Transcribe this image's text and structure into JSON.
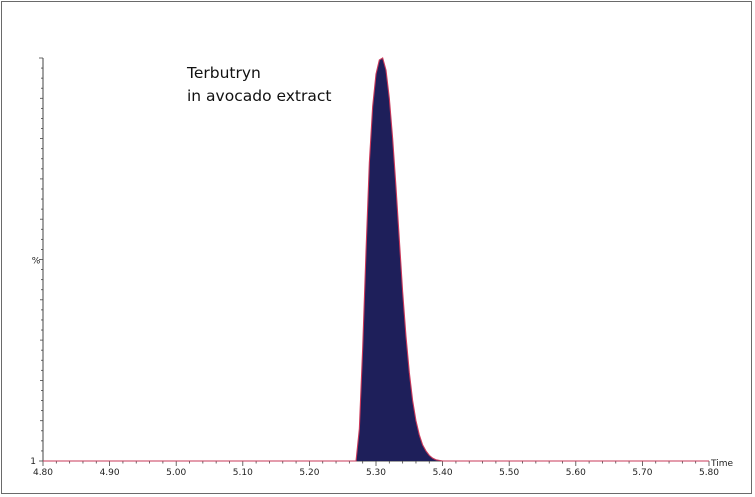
{
  "chart_data": {
    "type": "area",
    "title": "",
    "annotation": [
      "Terbutryn",
      "in avocado extract"
    ],
    "xlabel": "Time",
    "ylabel": "%",
    "xlim": [
      4.8,
      5.8
    ],
    "ylim": [
      0,
      100
    ],
    "x_ticks": [
      "4.80",
      "4.90",
      "5.00",
      "5.10",
      "5.20",
      "5.30",
      "5.40",
      "5.50",
      "5.60",
      "5.70",
      "5.80"
    ],
    "y_tick_label": "1",
    "grid": false,
    "colors": {
      "fill": "#1e1f5a",
      "outline": "#c8385a",
      "axis": "#444444"
    },
    "series": [
      {
        "x": [
          4.8,
          5.26,
          5.27,
          5.275,
          5.28,
          5.285,
          5.29,
          5.295,
          5.3,
          5.305,
          5.31,
          5.315,
          5.32,
          5.325,
          5.33,
          5.335,
          5.34,
          5.345,
          5.35,
          5.355,
          5.36,
          5.365,
          5.37,
          5.375,
          5.38,
          5.385,
          5.39,
          5.4,
          5.8
        ],
        "y": [
          0,
          0,
          0,
          8,
          28,
          52,
          74,
          88,
          96,
          99.5,
          100,
          97,
          90,
          80,
          68,
          55,
          42,
          31,
          22,
          15,
          10,
          6.5,
          4,
          2.5,
          1.4,
          0.7,
          0.3,
          0,
          0
        ]
      }
    ]
  }
}
